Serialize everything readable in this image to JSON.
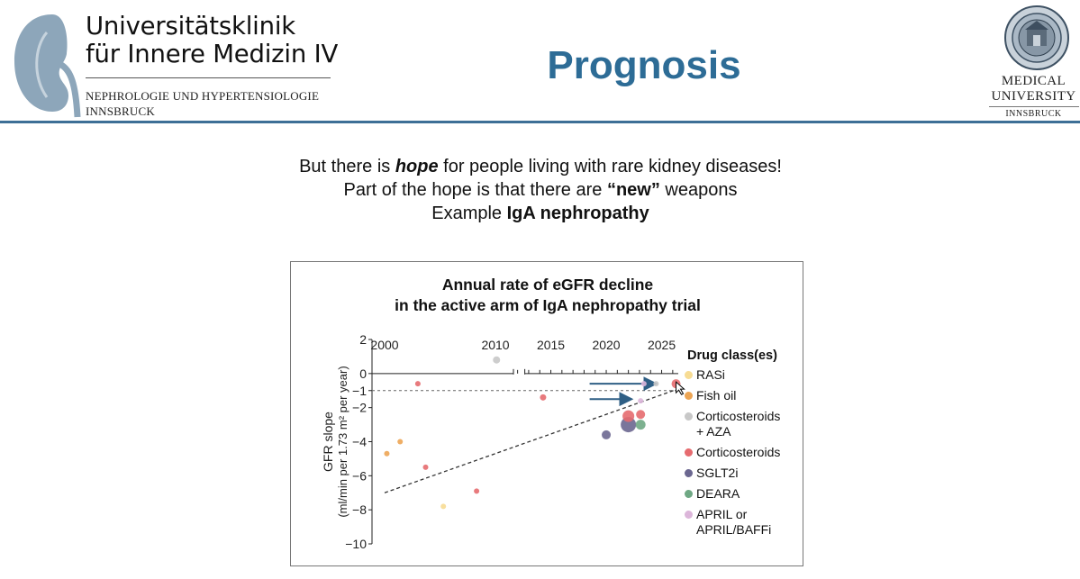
{
  "header": {
    "clinic_line1": "Universitätsklinik",
    "clinic_line2": "für Innere Medizin IV",
    "dept_line1": "NEPHROLOGIE UND HYPERTENSIOLOGIE",
    "dept_line2": "INNSBRUCK",
    "title": "Prognosis",
    "university_line1": "MEDICAL",
    "university_line2": "UNIVERSITY",
    "university_line3": "INNSBRUCK",
    "kidney_color": "#8da6ba",
    "accent_color": "#2d6c96",
    "divider_color": "#3d6f96"
  },
  "intro": {
    "line1_pre": "But there is ",
    "line1_em": "hope",
    "line1_post": " for people living with rare kidney diseases!",
    "line2_pre": "Part of the hope is that there are ",
    "line2_em": "“new”",
    "line2_post": " weapons",
    "line3_pre": "Example ",
    "line3_em": "IgA nephropathy"
  },
  "chart_data": {
    "type": "scatter",
    "title_line1": "Annual rate of eGFR decline",
    "title_line2": "in the active arm of IgA nephropathy trial",
    "ylabel_line1": "GFR slope",
    "ylabel_line2": "(ml/min per 1.73 m² per year)",
    "ylim": [
      -10,
      2
    ],
    "yticks": [
      2,
      0,
      -1,
      -2,
      -4,
      -6,
      -8,
      -10
    ],
    "xticks": [
      2000,
      2010,
      2015,
      2020,
      2025
    ],
    "axis_break": [
      2010,
      2012
    ],
    "reference_line_y": -1,
    "legend_title": "Drug class(es)",
    "legend": [
      {
        "name": "RASi",
        "color": "#f7dc94"
      },
      {
        "name": "Fish oil",
        "color": "#eda554"
      },
      {
        "name": "Corticosteroids + AZA",
        "line1": "Corticosteroids",
        "line2": "+ AZA",
        "color": "#c8c8c8"
      },
      {
        "name": "Corticosteroids",
        "color": "#e66b6f"
      },
      {
        "name": "SGLT2i",
        "color": "#6b6790"
      },
      {
        "name": "DEARA",
        "color": "#6fa884"
      },
      {
        "name": "APRIL or APRIL/BAFFi",
        "line1": "APRIL or",
        "line2": "APRIL/BAFFi",
        "color": "#dcb6da"
      }
    ],
    "points": [
      {
        "x": 2000.2,
        "y": -4.7,
        "cls": 1,
        "r": 3
      },
      {
        "x": 2001.4,
        "y": -4.0,
        "cls": 1,
        "r": 3
      },
      {
        "x": 2003.0,
        "y": -0.6,
        "cls": 3,
        "r": 3
      },
      {
        "x": 2003.7,
        "y": -5.5,
        "cls": 3,
        "r": 3
      },
      {
        "x": 2005.3,
        "y": -7.8,
        "cls": 0,
        "r": 3
      },
      {
        "x": 2008.3,
        "y": -6.9,
        "cls": 3,
        "r": 3
      },
      {
        "x": 2010.1,
        "y": 0.8,
        "cls": 2,
        "r": 4
      },
      {
        "x": 2014.3,
        "y": -1.4,
        "cls": 3,
        "r": 3.5
      },
      {
        "x": 2020.0,
        "y": -3.6,
        "cls": 4,
        "r": 5
      },
      {
        "x": 2022.0,
        "y": -3.0,
        "cls": 4,
        "r": 8.5
      },
      {
        "x": 2022.0,
        "y": -2.5,
        "cls": 3,
        "r": 6.5
      },
      {
        "x": 2023.1,
        "y": -3.0,
        "cls": 5,
        "r": 5.5
      },
      {
        "x": 2023.1,
        "y": -2.4,
        "cls": 3,
        "r": 5
      },
      {
        "x": 2023.1,
        "y": -1.6,
        "cls": 6,
        "r": 3
      },
      {
        "x": 2023.4,
        "y": -0.6,
        "cls": 6,
        "r": 3
      },
      {
        "x": 2024.5,
        "y": -0.6,
        "cls": 2,
        "r": 3
      },
      {
        "x": 2026.3,
        "y": -0.6,
        "cls": 3,
        "r": 5
      }
    ],
    "trend_line": [
      [
        2000,
        -7.0
      ],
      [
        2026.5,
        -0.9
      ]
    ],
    "arrows": [
      [
        [
          2018.5,
          -0.6
        ],
        [
          2024.5,
          -0.6
        ]
      ],
      [
        [
          2018.5,
          -1.5
        ],
        [
          2022.3,
          -1.5
        ]
      ]
    ],
    "arrow_color": "#2f5f85"
  }
}
